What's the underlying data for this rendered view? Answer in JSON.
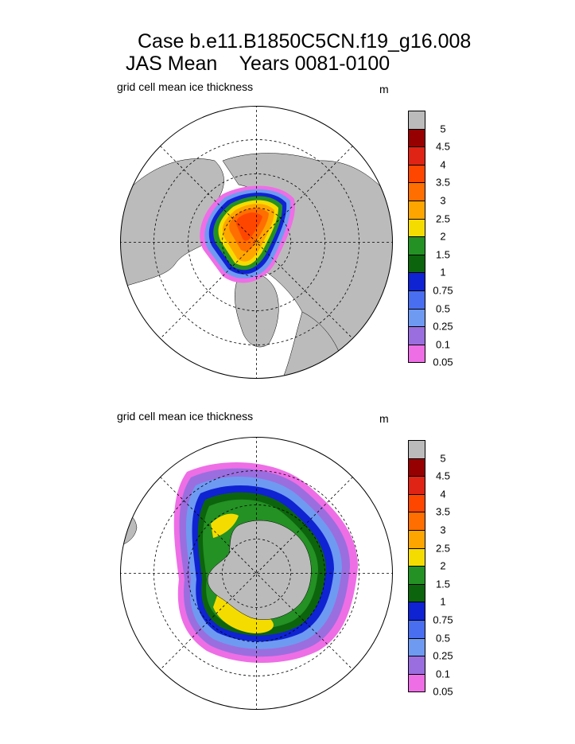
{
  "title": {
    "line1": "Case b.e11.B1850C5CN.f19_g16.008",
    "line2": "JAS Mean    Years 0081-0100"
  },
  "colors": {
    "bins": [
      "#ee6ee6",
      "#9a6ede",
      "#6e9af2",
      "#4a6ef0",
      "#0f23d2",
      "#0c640c",
      "#239123",
      "#f5dc00",
      "#ffa500",
      "#ff6e00",
      "#ff4600",
      "#df2314",
      "#960000",
      "#bbbbbb"
    ],
    "land": "#bbbbbb",
    "ocean": "#ffffff",
    "grid": "#000000"
  },
  "chart_data": [
    {
      "type": "heatmap",
      "hemisphere": "north",
      "title": "grid cell mean ice thickness",
      "units": "m",
      "colorbar_levels": [
        "5",
        "4.5",
        "4",
        "3.5",
        "3",
        "2.5",
        "2",
        "1.5",
        "1",
        "0.75",
        "0.5",
        "0.25",
        "0.1",
        "0.05"
      ],
      "projection": "polar stereographic",
      "approx_ice_bands_m": [
        0.05,
        0.1,
        0.25,
        0.5,
        0.75,
        1,
        1.5,
        2,
        2.5,
        3,
        3.5
      ]
    },
    {
      "type": "heatmap",
      "hemisphere": "south",
      "title": "grid cell mean ice thickness",
      "units": "m",
      "colorbar_levels": [
        "5",
        "4.5",
        "4",
        "3.5",
        "3",
        "2.5",
        "2",
        "1.5",
        "1",
        "0.75",
        "0.5",
        "0.25",
        "0.1",
        "0.05"
      ],
      "projection": "polar stereographic",
      "approx_ice_bands_m": [
        0.05,
        0.1,
        0.25,
        0.5,
        0.75,
        1,
        1.5,
        2
      ]
    }
  ]
}
